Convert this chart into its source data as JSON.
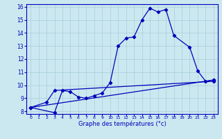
{
  "xlabel": "Graphe des températures (°c)",
  "background_color": "#cbe8f0",
  "grid_color": "#a8cdd8",
  "line_color": "#0000bb",
  "hours": [
    0,
    1,
    2,
    3,
    4,
    5,
    6,
    7,
    8,
    9,
    10,
    11,
    12,
    13,
    14,
    15,
    16,
    17,
    18,
    19,
    20,
    21,
    22,
    23
  ],
  "temp_main": [
    8.3,
    null,
    null,
    7.9,
    9.6,
    9.5,
    9.1,
    9.0,
    9.2,
    9.4,
    10.2,
    13.0,
    13.6,
    13.7,
    15.0,
    15.9,
    15.6,
    15.8,
    13.8,
    null,
    12.9,
    11.1,
    10.3,
    10.4
  ],
  "temp_line2": [
    8.3,
    null,
    8.7,
    9.6,
    null,
    null,
    null,
    null,
    null,
    null,
    null,
    null,
    null,
    null,
    null,
    null,
    null,
    null,
    null,
    null,
    null,
    null,
    null,
    10.3
  ],
  "temp_line3": [
    8.3,
    null,
    null,
    null,
    null,
    null,
    null,
    null,
    null,
    null,
    null,
    null,
    null,
    null,
    null,
    null,
    null,
    null,
    null,
    null,
    null,
    null,
    null,
    10.4
  ],
  "ylim": [
    8,
    16
  ],
  "xlim": [
    0,
    23
  ],
  "yticks": [
    8,
    9,
    10,
    11,
    12,
    13,
    14,
    15,
    16
  ],
  "xticks": [
    0,
    1,
    2,
    3,
    4,
    5,
    6,
    7,
    8,
    9,
    10,
    11,
    12,
    13,
    14,
    15,
    16,
    17,
    18,
    19,
    20,
    21,
    22,
    23
  ]
}
